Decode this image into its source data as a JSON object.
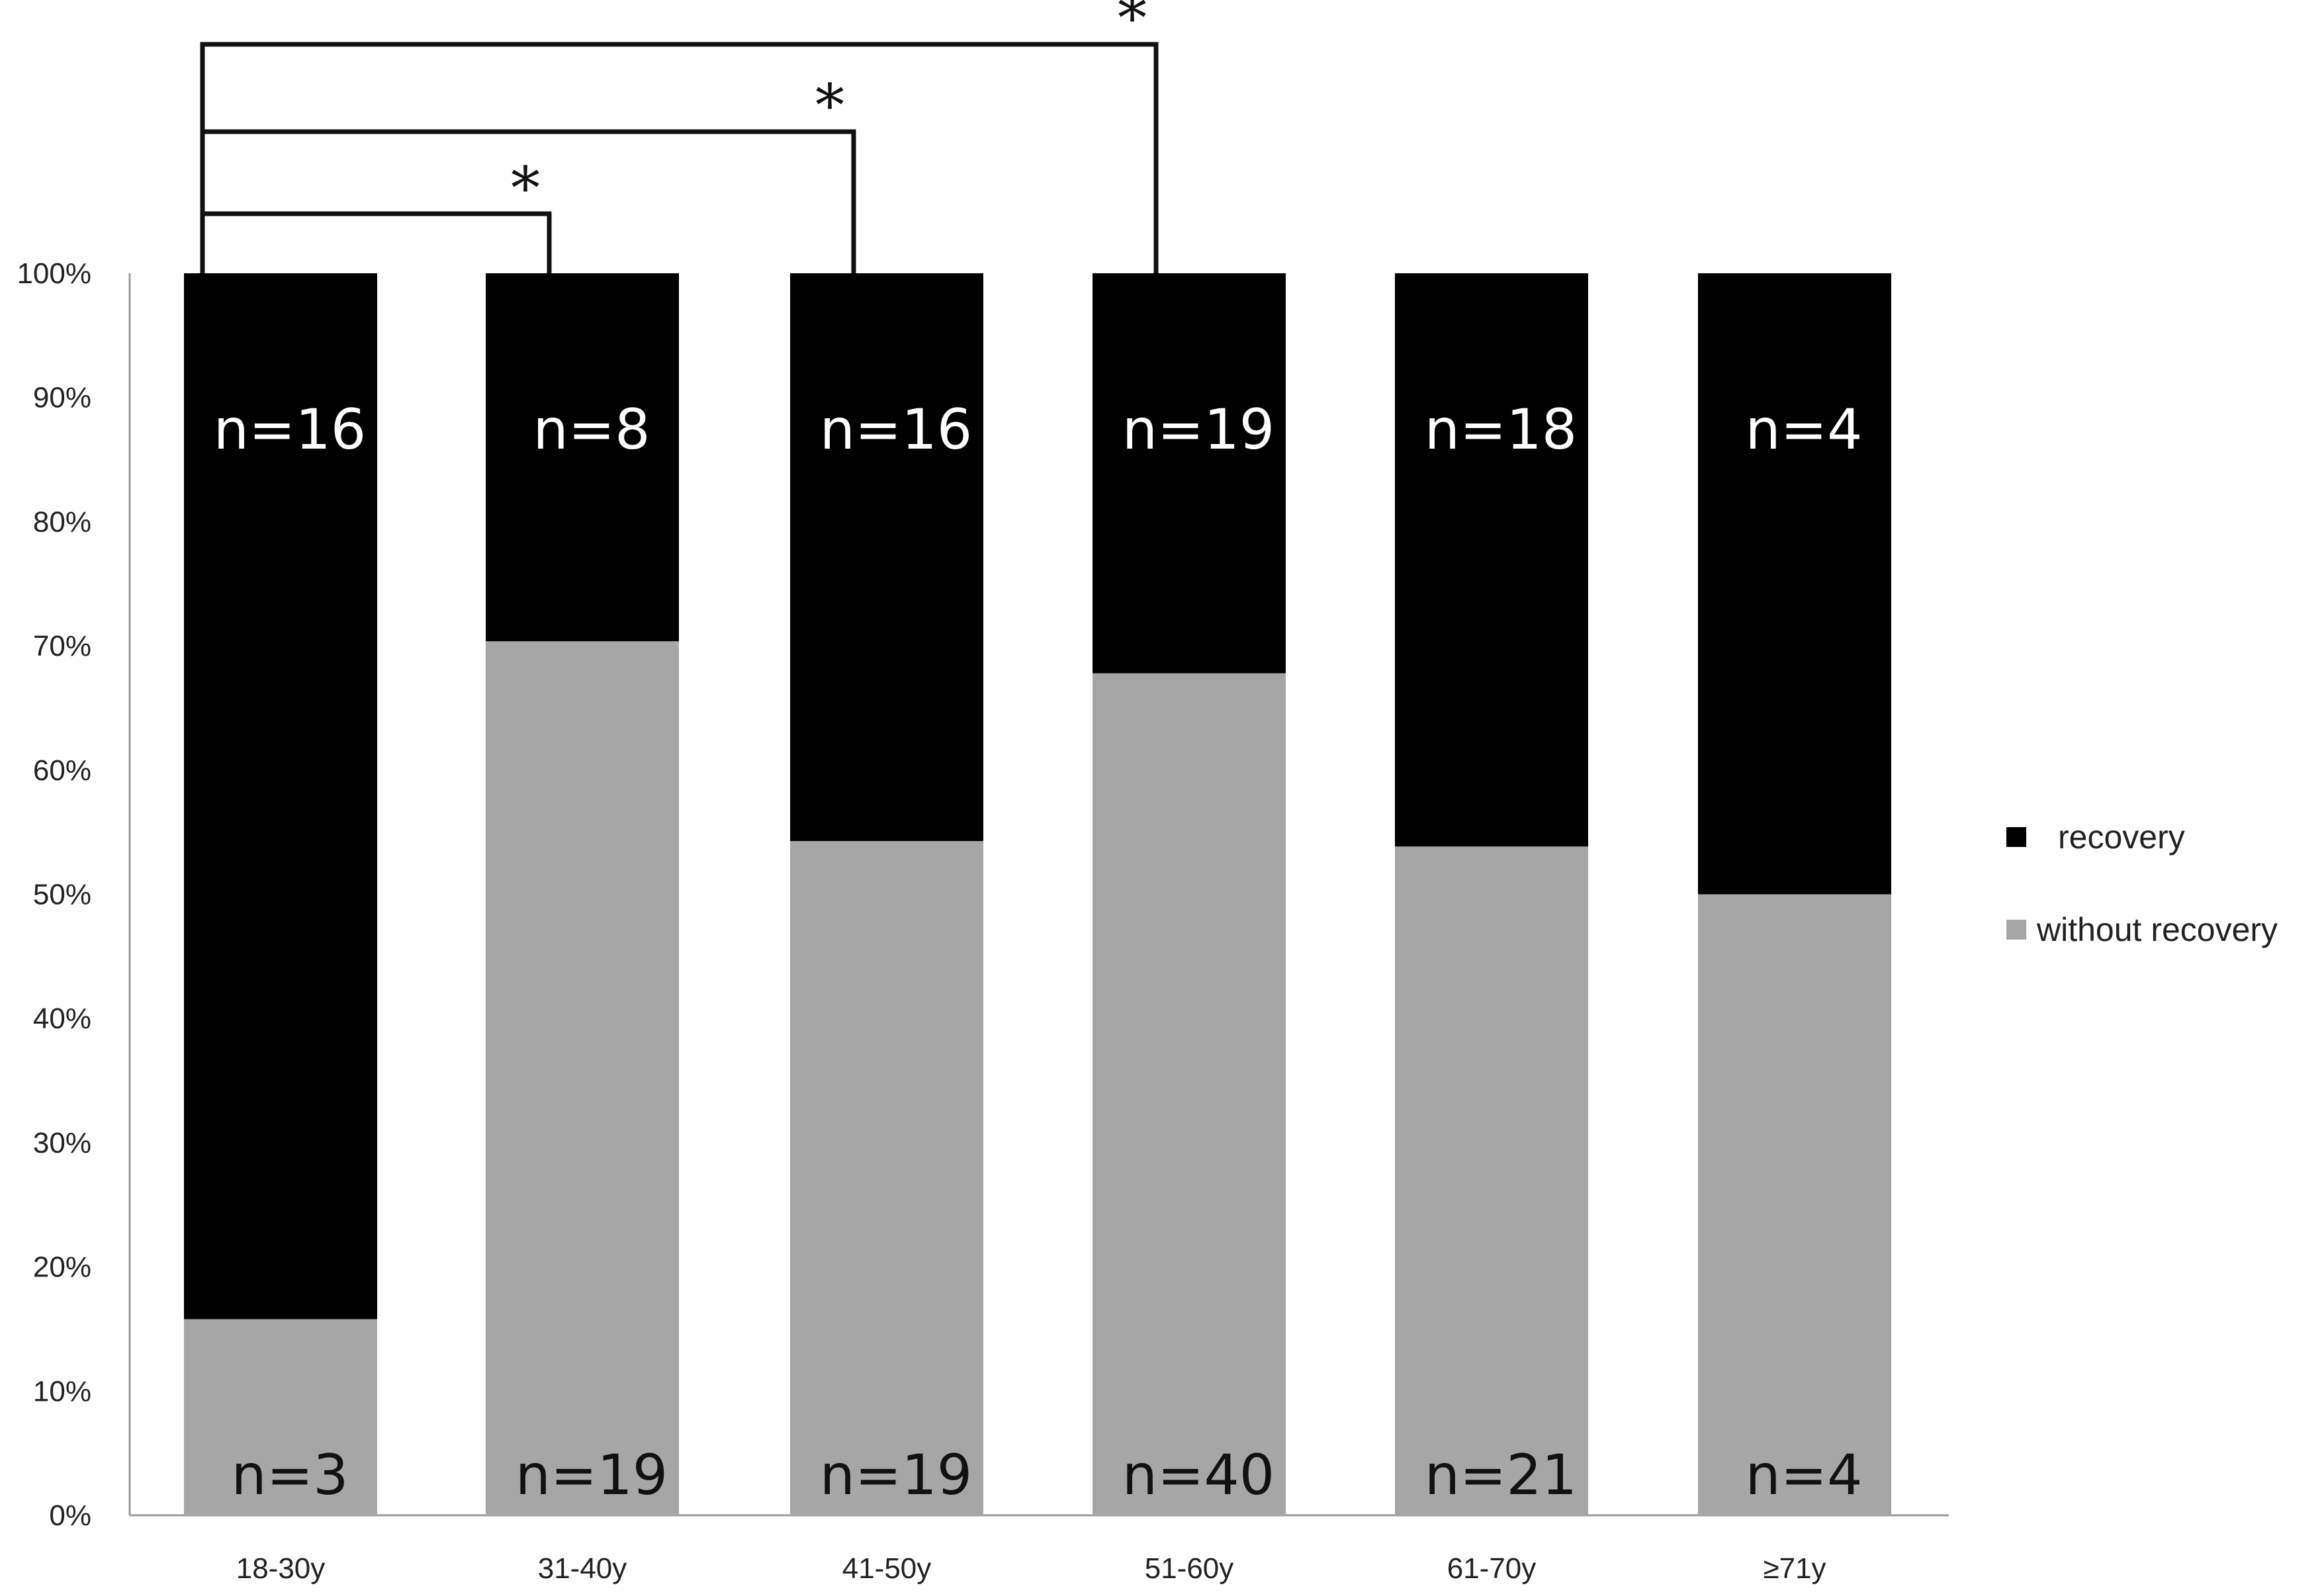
{
  "chart_data": {
    "type": "bar",
    "stacked": true,
    "percent_scale": true,
    "categories": [
      "18-30y",
      "31-40y",
      "41-50y",
      "51-60y",
      "61-70y",
      "≥71y"
    ],
    "series": [
      {
        "name": "without recovery",
        "color": "#a6a6a6",
        "counts": [
          3,
          19,
          19,
          40,
          21,
          4
        ],
        "labels": [
          "n=3",
          "n=19",
          "n=19",
          "n=40",
          "n=21",
          "n=4"
        ]
      },
      {
        "name": "recovery",
        "color": "#000000",
        "counts": [
          16,
          8,
          16,
          19,
          18,
          4
        ],
        "labels": [
          "n=16",
          "n=8",
          "n=16",
          "n=19",
          "n=18",
          "n=4"
        ]
      }
    ],
    "yticks": [
      "0%",
      "10%",
      "20%",
      "30%",
      "40%",
      "50%",
      "60%",
      "70%",
      "80%",
      "90%",
      "100%"
    ],
    "ylim": [
      0,
      100
    ],
    "grid": false,
    "legend_position": "right",
    "significance": [
      {
        "from": "18-30y",
        "to": "31-40y",
        "label": "*"
      },
      {
        "from": "18-30y",
        "to": "41-50y",
        "label": "*"
      },
      {
        "from": "18-30y",
        "to": "51-60y",
        "label": "*"
      }
    ]
  }
}
